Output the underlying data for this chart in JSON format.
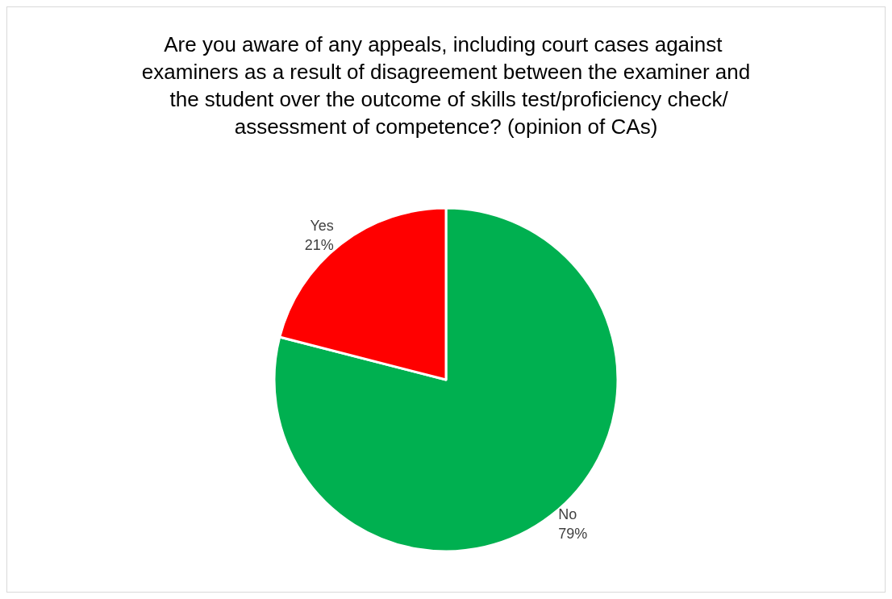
{
  "chart_data": {
    "type": "pie",
    "title": "Are you aware of any appeals, including court cases against examiners as a result of disagreement between the examiner and the student over the outcome of skills test/proficiency check/assessment of competence? (opinion of CAs)",
    "categories": [
      "No",
      "Yes"
    ],
    "values": [
      79,
      21
    ],
    "colors": [
      "#00b050",
      "#ff0000"
    ],
    "value_labels": [
      "79%",
      "21%"
    ],
    "legend": false
  }
}
